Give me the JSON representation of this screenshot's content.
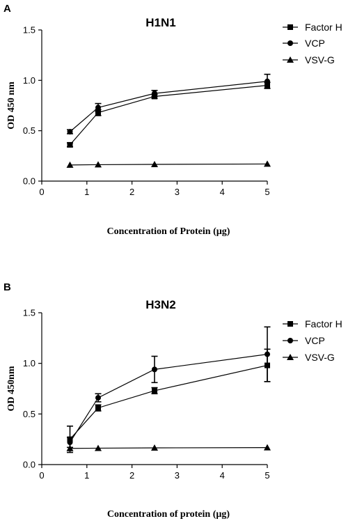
{
  "chart_data": [
    {
      "panel": "A",
      "type": "line",
      "title": "H1N1",
      "xlabel": "Concentration of Protein (µg)",
      "ylabel": "OD 450 nm",
      "xlim": [
        0,
        5
      ],
      "ylim": [
        0,
        1.5
      ],
      "xticks": [
        "0",
        "1",
        "2",
        "3",
        "4",
        "5"
      ],
      "yticks": [
        "0.0",
        "0.5",
        "1.0",
        "1.5"
      ],
      "legend_position": "top-right",
      "series": [
        {
          "name": "Factor H",
          "marker": "square",
          "x": [
            0.625,
            1.25,
            2.5,
            5
          ],
          "y": [
            0.36,
            0.68,
            0.84,
            0.95
          ],
          "err": [
            0.02,
            0.03,
            0.02,
            0.03
          ]
        },
        {
          "name": "VCP",
          "marker": "circle",
          "x": [
            0.625,
            1.25,
            2.5,
            5
          ],
          "y": [
            0.49,
            0.73,
            0.87,
            0.99
          ],
          "err": [
            0.02,
            0.04,
            0.03,
            0.07
          ]
        },
        {
          "name": "VSV-G",
          "marker": "triangle",
          "x": [
            0.625,
            1.25,
            2.5,
            5
          ],
          "y": [
            0.16,
            0.163,
            0.166,
            0.17
          ],
          "err": [
            0,
            0,
            0,
            0
          ]
        }
      ]
    },
    {
      "panel": "B",
      "type": "line",
      "title": "H3N2",
      "xlabel": "Concentration of protein (µg)",
      "ylabel": "OD 450nm",
      "xlim": [
        0,
        5
      ],
      "ylim": [
        0,
        1.5
      ],
      "xticks": [
        "0",
        "1",
        "2",
        "3",
        "4",
        "5"
      ],
      "yticks": [
        "0.0",
        "0.5",
        "1.0",
        "1.5"
      ],
      "legend_position": "top-right",
      "series": [
        {
          "name": "Factor H",
          "marker": "square",
          "x": [
            0.625,
            1.25,
            2.5,
            5
          ],
          "y": [
            0.25,
            0.56,
            0.73,
            0.98
          ],
          "err": [
            0.13,
            0.03,
            0.03,
            0.16
          ]
        },
        {
          "name": "VCP",
          "marker": "circle",
          "x": [
            0.625,
            1.25,
            2.5,
            5
          ],
          "y": [
            0.22,
            0.66,
            0.94,
            1.09
          ],
          "err": [
            0.05,
            0.04,
            0.13,
            0.27
          ]
        },
        {
          "name": "VSV-G",
          "marker": "triangle",
          "x": [
            0.625,
            1.25,
            2.5,
            5
          ],
          "y": [
            0.16,
            0.162,
            0.165,
            0.168
          ],
          "err": [
            0,
            0,
            0,
            0
          ]
        }
      ]
    }
  ]
}
